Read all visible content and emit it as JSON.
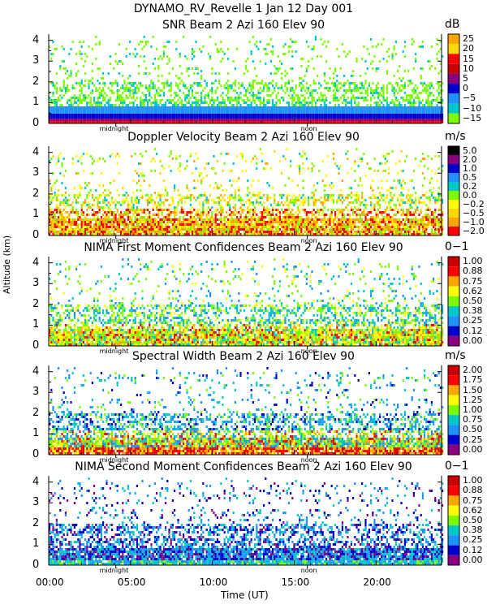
{
  "header": {
    "title": "DYNAMO_RV_Revelle    1 Jan 12 Day 001"
  },
  "axes": {
    "ylabel": "Altitude (km)",
    "xlabel": "Time (UT)",
    "x_ticks": [
      "00:00",
      "05:00",
      "10:00",
      "15:00",
      "20:00"
    ],
    "y_ticks": [
      "0",
      "1",
      "2",
      "3",
      "4"
    ],
    "day_markers": {
      "midnight": "midnight",
      "noon": "noon"
    }
  },
  "chart_data": [
    {
      "type": "heatmap",
      "title": "SNR Beam 2 Azi 160 Elev 90",
      "unit": "dB",
      "colorbar_labels": [
        "25",
        "20",
        "15",
        "10",
        "5",
        "0",
        "−5",
        "−10",
        "−15"
      ],
      "colors": [
        "#ffa500",
        "#ffd700",
        "#ff0000",
        "#c80000",
        "#8b0080",
        "#0000cd",
        "#1e90ff",
        "#00c8c8",
        "#7cfc00"
      ],
      "xlim": [
        0,
        24
      ],
      "ylim": [
        0,
        4.3
      ]
    },
    {
      "type": "heatmap",
      "title": "Doppler Velocity Beam 2 Azi 160 Elev 90",
      "unit": "m/s",
      "colorbar_labels": [
        "5.0",
        "2.0",
        "1.0",
        "0.5",
        "0.2",
        "0.0",
        "−0.2",
        "−0.5",
        "−1.0",
        "−2.0"
      ],
      "colors": [
        "#000000",
        "#8b0080",
        "#0000cd",
        "#1e90ff",
        "#00c8c8",
        "#7cfc00",
        "#ffff00",
        "#ffd700",
        "#ffa500",
        "#ff0000"
      ],
      "xlim": [
        0,
        24
      ],
      "ylim": [
        0,
        4.3
      ]
    },
    {
      "type": "heatmap",
      "title": "NIMA First Moment Confidences Beam 2 Azi 160 Elev 90",
      "unit": "0−1",
      "colorbar_labels": [
        "1.00",
        "0.88",
        "0.75",
        "0.62",
        "0.50",
        "0.38",
        "0.25",
        "0.12",
        "0.00"
      ],
      "colors": [
        "#c80000",
        "#ff0000",
        "#ffa500",
        "#ffff00",
        "#7cfc00",
        "#00c8c8",
        "#1e90ff",
        "#0000cd",
        "#8b0080"
      ],
      "xlim": [
        0,
        24
      ],
      "ylim": [
        0,
        4.3
      ]
    },
    {
      "type": "heatmap",
      "title": "Spectral Width Beam 2 Azi 160 Elev 90",
      "unit": "m/s",
      "colorbar_labels": [
        "2.00",
        "1.75",
        "1.50",
        "1.25",
        "1.00",
        "0.75",
        "0.50",
        "0.25",
        "0.00"
      ],
      "colors": [
        "#c80000",
        "#ff0000",
        "#ffa500",
        "#ffff00",
        "#7cfc00",
        "#00c8c8",
        "#1e90ff",
        "#0000cd",
        "#8b0080"
      ],
      "xlim": [
        0,
        24
      ],
      "ylim": [
        0,
        4.3
      ]
    },
    {
      "type": "heatmap",
      "title": "NIMA Second Moment Confidences Beam 2 Azi 160 Elev 90",
      "unit": "0−1",
      "colorbar_labels": [
        "1.00",
        "0.88",
        "0.75",
        "0.62",
        "0.50",
        "0.38",
        "0.25",
        "0.12",
        "0.00"
      ],
      "colors": [
        "#c80000",
        "#ff0000",
        "#ffa500",
        "#ffff00",
        "#7cfc00",
        "#00c8c8",
        "#1e90ff",
        "#0000cd",
        "#8b0080"
      ],
      "xlim": [
        0,
        24
      ],
      "ylim": [
        0,
        4.3
      ]
    }
  ]
}
